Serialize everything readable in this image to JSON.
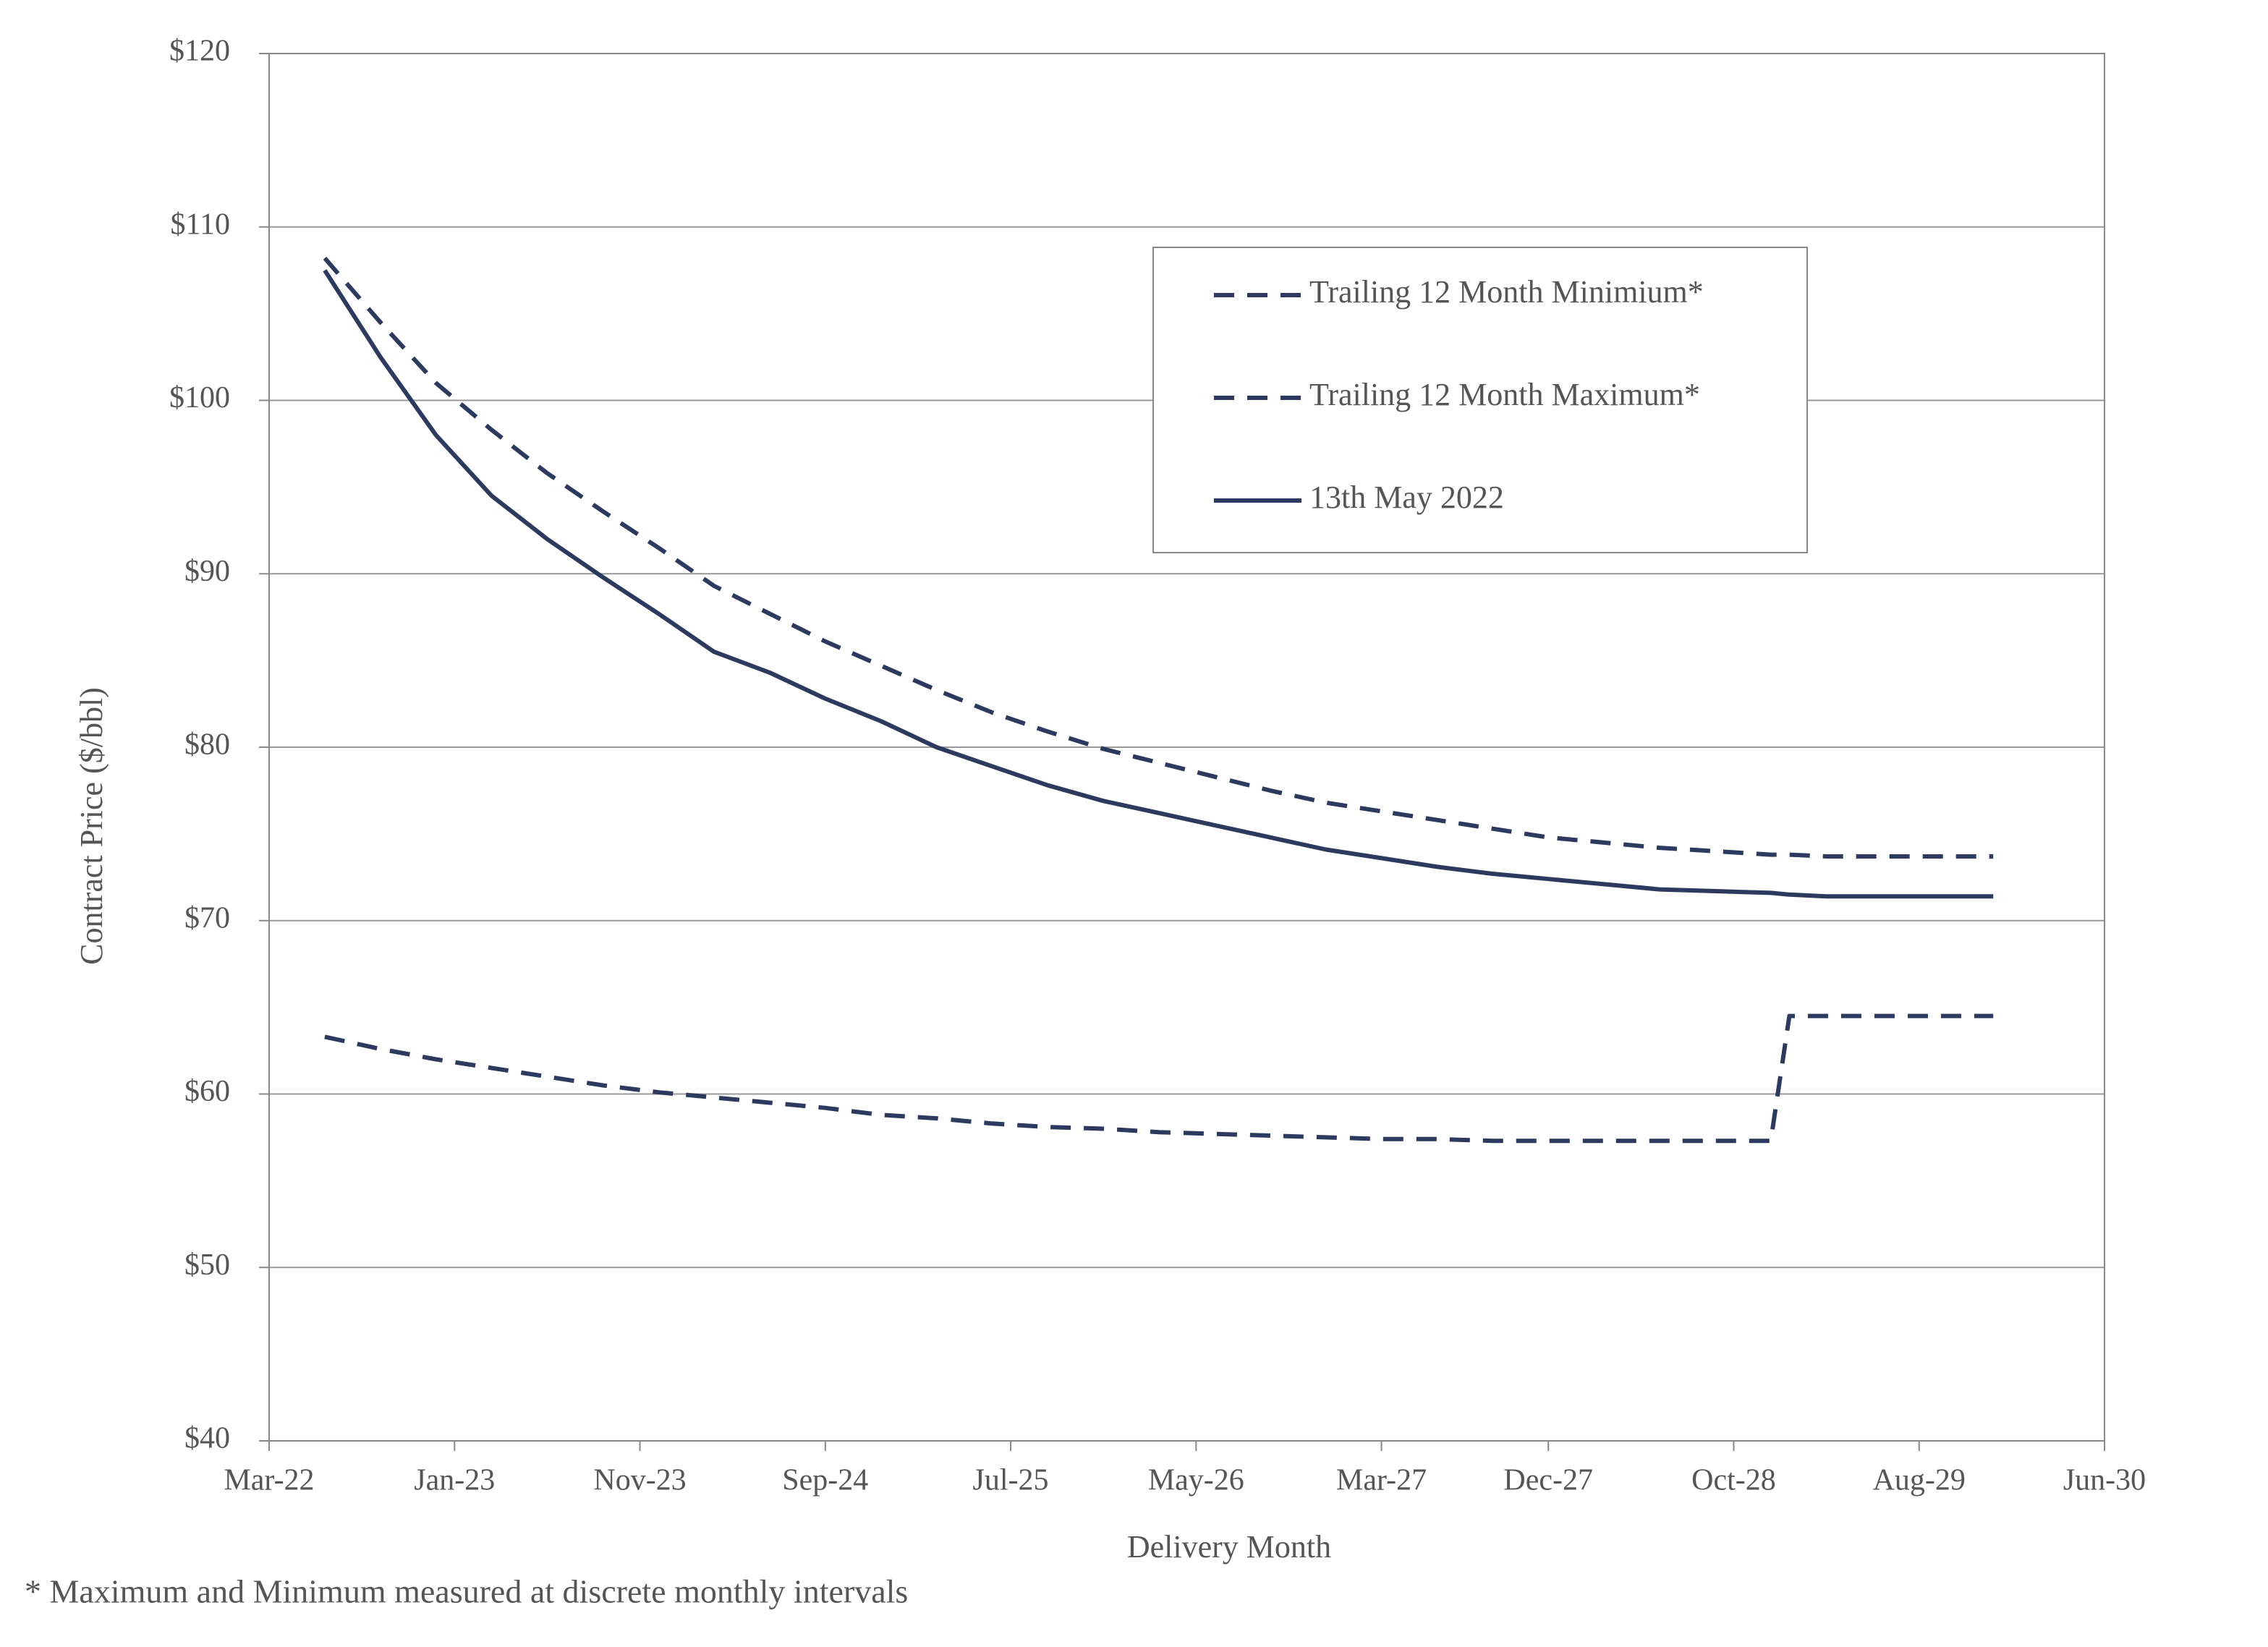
{
  "chart_data": {
    "type": "line",
    "y_label": "Contract Price ($/bbl)",
    "x_label": "Delivery Month",
    "footnote": "* Maximum and Minimum measured at discrete monthly intervals",
    "x": [
      "Jun-22",
      "Sep-22",
      "Dec-22",
      "Mar-23",
      "Jun-23",
      "Sep-23",
      "Dec-23",
      "Mar-24",
      "Jun-24",
      "Sep-24",
      "Dec-24",
      "Mar-25",
      "Jun-25",
      "Sep-25",
      "Dec-25",
      "Mar-26",
      "Jun-26",
      "Sep-26",
      "Dec-26",
      "Mar-27",
      "Jun-27",
      "Sep-27",
      "Dec-27",
      "Mar-28",
      "Jun-28",
      "Sep-28",
      "Dec-28",
      "Jan-29",
      "Mar-29",
      "Jun-29",
      "Sep-29",
      "Dec-29"
    ],
    "xlim": [
      "Mar-22",
      "Jun-30"
    ],
    "xticks": [
      "Mar-22",
      "Jan-23",
      "Nov-23",
      "Sep-24",
      "Jul-25",
      "May-26",
      "Mar-27",
      "Dec-27",
      "Oct-28",
      "Aug-29",
      "Jun-30"
    ],
    "ylim": [
      40,
      120
    ],
    "yticks": [
      {
        "value": 40,
        "label": "$40"
      },
      {
        "value": 50,
        "label": "$50"
      },
      {
        "value": 60,
        "label": "$60"
      },
      {
        "value": 70,
        "label": "$70"
      },
      {
        "value": 80,
        "label": "$80"
      },
      {
        "value": 90,
        "label": "$90"
      },
      {
        "value": 100,
        "label": "$100"
      },
      {
        "value": 110,
        "label": "$110"
      },
      {
        "value": 120,
        "label": "$120"
      }
    ],
    "grid": true,
    "legend": "upper right",
    "series": [
      {
        "name": "Trailing 12 Month Minimium*",
        "color": "#2b3a5e",
        "style": "dashed",
        "values": [
          63.3,
          62.6,
          62,
          61.5,
          61,
          60.5,
          60.1,
          59.8,
          59.5,
          59.2,
          58.8,
          58.6,
          58.3,
          58.1,
          58,
          57.8,
          57.7,
          57.6,
          57.5,
          57.4,
          57.4,
          57.3,
          57.3,
          57.3,
          57.3,
          57.3,
          57.3,
          64.5,
          64.5,
          64.5,
          64.5,
          64.5
        ]
      },
      {
        "name": "Trailing 12 Month Maximum*",
        "color": "#2b3a5e",
        "style": "dashed",
        "values": [
          108.2,
          104.5,
          101,
          98.3,
          95.8,
          93.6,
          91.5,
          89.3,
          87.7,
          86.1,
          84.7,
          83.3,
          82,
          80.9,
          79.9,
          79.1,
          78.3,
          77.5,
          76.8,
          76.3,
          75.8,
          75.3,
          74.8,
          74.5,
          74.2,
          74,
          73.8,
          73.8,
          73.7,
          73.7,
          73.7,
          73.7
        ]
      },
      {
        "name": "13th May 2022",
        "color": "#2b3a5e",
        "style": "solid",
        "values": [
          107.5,
          102.5,
          98,
          94.5,
          92,
          89.8,
          87.7,
          85.5,
          84.3,
          82.8,
          81.5,
          80,
          78.9,
          77.8,
          76.9,
          76.2,
          75.5,
          74.8,
          74.1,
          73.6,
          73.1,
          72.7,
          72.4,
          72.1,
          71.8,
          71.7,
          71.6,
          71.5,
          71.4,
          71.4,
          71.4,
          71.4
        ]
      }
    ]
  }
}
